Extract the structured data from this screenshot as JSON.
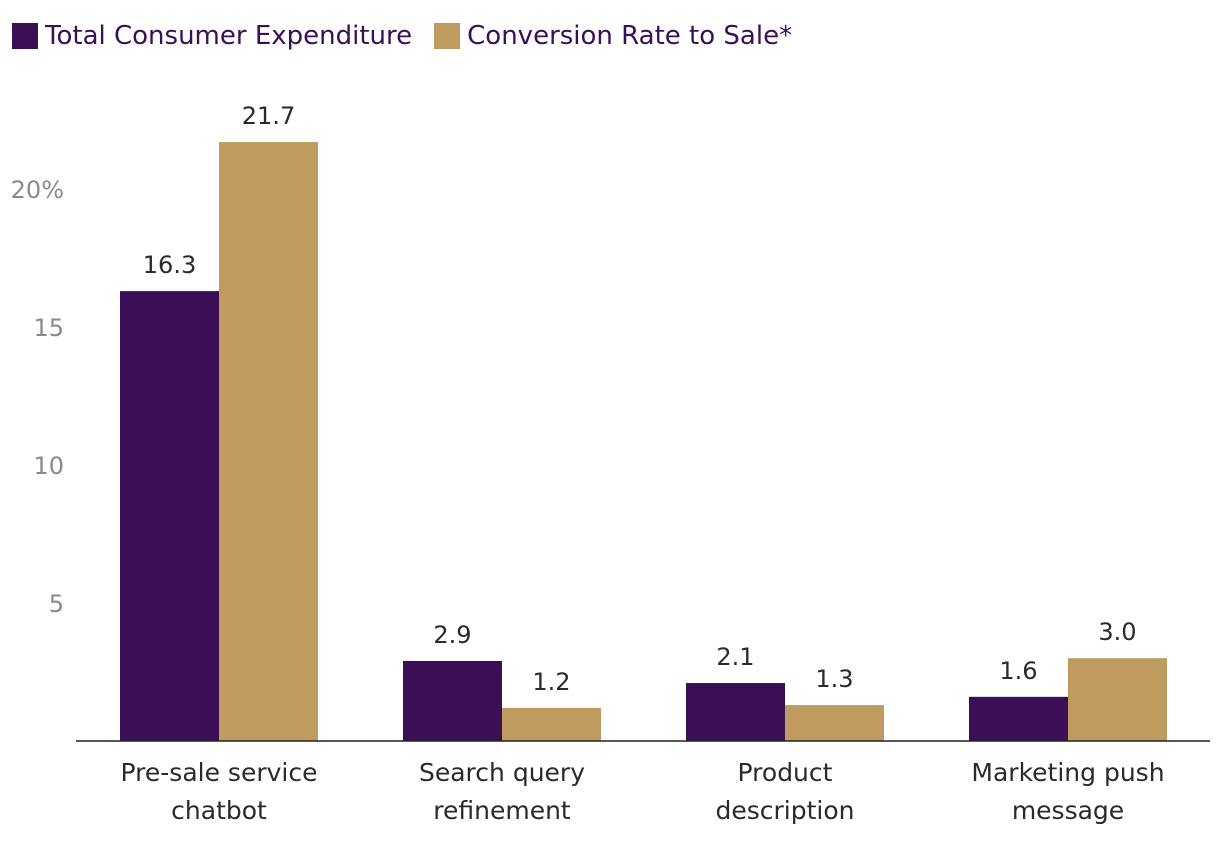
{
  "chart_data": {
    "type": "bar",
    "categories": [
      [
        "Pre-sale service",
        "chatbot"
      ],
      [
        "Search query",
        "refinement"
      ],
      [
        "Product",
        "description"
      ],
      [
        "Marketing push",
        "message"
      ]
    ],
    "series": [
      {
        "name": "Total Consumer Expenditure",
        "color": "#3b0f55",
        "values": [
          16.3,
          2.9,
          2.1,
          1.6
        ],
        "labels": [
          "16.3",
          "2.9",
          "2.1",
          "1.6"
        ]
      },
      {
        "name": "Conversion Rate to Sale*",
        "color": "#bf9b5f",
        "values": [
          21.7,
          1.2,
          1.3,
          3.0
        ],
        "labels": [
          "21.7",
          "1.2",
          "1.3",
          "3.0"
        ]
      }
    ],
    "y_ticks": [
      {
        "value": 5,
        "label": "5"
      },
      {
        "value": 10,
        "label": "10"
      },
      {
        "value": 15,
        "label": "15"
      },
      {
        "value": 20,
        "label": "20%"
      }
    ],
    "ylim": [
      0,
      22
    ],
    "legend": "top-left",
    "grid": false,
    "title": "",
    "xlabel": "",
    "ylabel": ""
  }
}
